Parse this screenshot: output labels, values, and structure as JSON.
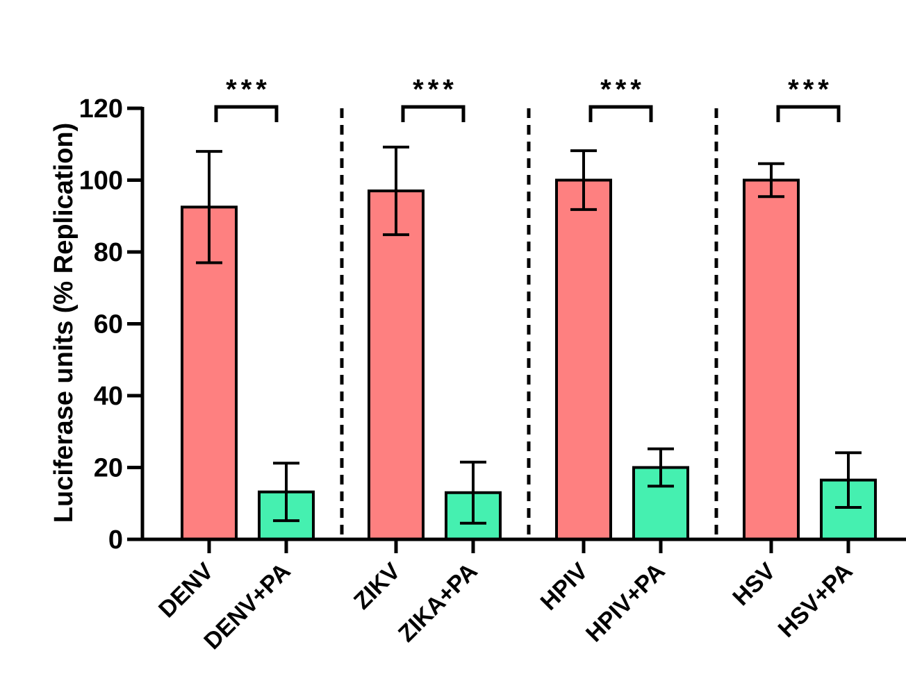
{
  "chart_data": {
    "type": "bar",
    "title": "",
    "xlabel": "",
    "ylabel": "Luciferase units (% Replication)",
    "ylim": [
      0,
      120
    ],
    "yticks": [
      0,
      20,
      40,
      60,
      80,
      100,
      120
    ],
    "grid": false,
    "legend": "none",
    "colors": {
      "virus": "#fe8080",
      "treated": "#45f0b0"
    },
    "categories": [
      "DENV",
      "DENV+PA",
      "ZIKV",
      "ZIKA+PA",
      "HPIV",
      "HPIV+PA",
      "HSV",
      "HSV+PA"
    ],
    "values": [
      92.5,
      13.2,
      97,
      13,
      100,
      20,
      100,
      16.5
    ],
    "errors": [
      15.5,
      8,
      12.2,
      8.5,
      8.2,
      5.2,
      4.6,
      7.6
    ],
    "groups": [
      {
        "bars": [
          0,
          1
        ],
        "significance": "***"
      },
      {
        "bars": [
          2,
          3
        ],
        "significance": "***"
      },
      {
        "bars": [
          4,
          5
        ],
        "significance": "***"
      },
      {
        "bars": [
          6,
          7
        ],
        "significance": "***"
      }
    ]
  }
}
